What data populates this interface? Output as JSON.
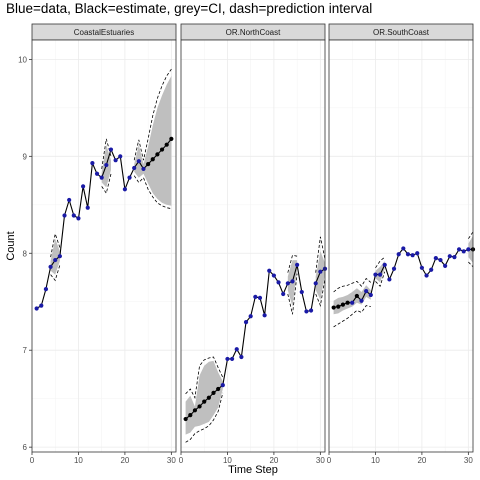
{
  "title": "Blue=data, Black=estimate, grey=CI, dash=prediction interval",
  "colors": {
    "data": "#1a1aa6",
    "estimate": "#000000",
    "ci": "#bfbfbf",
    "strip_bg": "#d9d9d9",
    "grid": "#ebebeb"
  },
  "chart_data": {
    "type": "line",
    "xlabel": "Time Step",
    "ylabel": "Count",
    "xlim": [
      0,
      31
    ],
    "ylim": [
      5.95,
      10.2
    ],
    "x_ticks": [
      0,
      10,
      20,
      30
    ],
    "y_ticks": [
      6,
      7,
      8,
      9,
      10
    ],
    "grid": true,
    "panels": [
      {
        "name": "CoastalEstuaries",
        "data": [
          [
            1,
            7.43
          ],
          [
            2,
            7.46
          ],
          [
            3,
            7.63
          ],
          [
            4,
            7.86
          ],
          [
            5,
            7.93
          ],
          [
            6,
            7.97
          ],
          [
            7,
            8.39
          ],
          [
            8,
            8.55
          ],
          [
            9,
            8.39
          ],
          [
            10,
            8.36
          ],
          [
            11,
            8.69
          ],
          [
            12,
            8.47
          ],
          [
            13,
            8.93
          ],
          [
            14,
            8.82
          ],
          [
            15,
            8.78
          ],
          [
            16,
            8.91
          ],
          [
            17,
            9.07
          ],
          [
            18,
            8.96
          ],
          [
            19,
            9.0
          ],
          [
            20,
            8.66
          ],
          [
            21,
            8.78
          ],
          [
            22,
            8.88
          ],
          [
            23,
            8.95
          ],
          [
            24,
            8.87
          ]
        ],
        "estimates": [
          [
            25,
            8.92
          ],
          [
            26,
            8.97
          ],
          [
            27,
            9.02
          ],
          [
            28,
            9.07
          ],
          [
            29,
            9.12
          ],
          [
            30,
            9.18
          ]
        ],
        "ci_bands": [
          {
            "x": [
              4,
              5,
              6
            ],
            "lower": [
              7.82,
              7.78,
              7.92
            ],
            "upper": [
              7.92,
              8.15,
              8.02
            ]
          },
          {
            "x": [
              15,
              16,
              17
            ],
            "lower": [
              8.73,
              8.68,
              8.86
            ],
            "upper": [
              8.83,
              9.12,
              8.96
            ]
          },
          {
            "x": [
              22,
              23,
              24,
              25,
              26,
              27,
              28,
              29,
              30
            ],
            "lower": [
              8.84,
              8.78,
              8.82,
              8.72,
              8.62,
              8.56,
              8.52,
              8.5,
              8.49
            ],
            "upper": [
              8.92,
              9.12,
              8.92,
              9.1,
              9.32,
              9.5,
              9.63,
              9.74,
              9.83
            ]
          }
        ],
        "prediction_interval": [
          {
            "x": [
              4,
              5,
              6
            ],
            "lower": [
              7.78,
              7.72,
              7.88
            ],
            "upper": [
              7.96,
              8.2,
              8.06
            ]
          },
          {
            "x": [
              15,
              16,
              17
            ],
            "lower": [
              8.69,
              8.62,
              8.82
            ],
            "upper": [
              8.87,
              9.18,
              9.0
            ]
          },
          {
            "x": [
              22,
              23,
              24,
              25,
              26,
              27,
              28,
              29,
              30
            ],
            "lower": [
              8.8,
              8.73,
              8.78,
              8.66,
              8.58,
              8.52,
              8.49,
              8.47,
              8.46
            ],
            "upper": [
              8.96,
              9.17,
              8.96,
              9.18,
              9.42,
              9.6,
              9.73,
              9.83,
              9.9
            ]
          }
        ]
      },
      {
        "name": "OR.NorthCoast",
        "data": [
          [
            9,
            6.64
          ],
          [
            10,
            6.91
          ],
          [
            11,
            6.91
          ],
          [
            12,
            7.01
          ],
          [
            13,
            6.93
          ],
          [
            14,
            7.29
          ],
          [
            15,
            7.35
          ],
          [
            16,
            7.55
          ],
          [
            17,
            7.54
          ],
          [
            18,
            7.36
          ],
          [
            19,
            7.82
          ],
          [
            20,
            7.77
          ],
          [
            21,
            7.7
          ],
          [
            22,
            7.58
          ],
          [
            23,
            7.69
          ],
          [
            24,
            7.71
          ],
          [
            25,
            7.88
          ],
          [
            26,
            7.6
          ],
          [
            27,
            7.4
          ],
          [
            28,
            7.41
          ],
          [
            29,
            7.69
          ],
          [
            30,
            7.81
          ],
          [
            31,
            7.84
          ]
        ],
        "estimates": [
          [
            1,
            6.29
          ],
          [
            2,
            6.33
          ],
          [
            3,
            6.38
          ],
          [
            4,
            6.42
          ],
          [
            5,
            6.47
          ],
          [
            6,
            6.51
          ],
          [
            7,
            6.56
          ],
          [
            8,
            6.6
          ]
        ],
        "ci_bands": [
          {
            "x": [
              1,
              2,
              3,
              4,
              5,
              6,
              7,
              8,
              9
            ],
            "lower": [
              6.13,
              6.15,
              6.21,
              6.22,
              6.24,
              6.26,
              6.33,
              6.41,
              6.6
            ],
            "upper": [
              6.47,
              6.53,
              6.42,
              6.74,
              6.84,
              6.88,
              6.89,
              6.77,
              6.68
            ]
          },
          {
            "x": [
              23,
              24,
              25
            ],
            "lower": [
              7.62,
              7.45,
              7.83
            ],
            "upper": [
              7.76,
              7.93,
              7.93
            ]
          },
          {
            "x": [
              29,
              30,
              31
            ],
            "lower": [
              7.62,
              7.52,
              7.78
            ],
            "upper": [
              7.76,
              8.02,
              7.9
            ]
          }
        ],
        "prediction_interval": [
          {
            "x": [
              1,
              2,
              3,
              4,
              5,
              6,
              7,
              8,
              9
            ],
            "lower": [
              6.05,
              6.08,
              6.14,
              6.17,
              6.19,
              6.22,
              6.28,
              6.37,
              6.56
            ],
            "upper": [
              6.55,
              6.6,
              6.51,
              6.84,
              6.9,
              6.92,
              6.93,
              6.82,
              6.72
            ]
          },
          {
            "x": [
              23,
              24,
              25
            ],
            "lower": [
              7.58,
              7.37,
              7.79
            ],
            "upper": [
              7.8,
              7.98,
              7.97
            ]
          },
          {
            "x": [
              29,
              30,
              31
            ],
            "lower": [
              7.58,
              7.46,
              7.74
            ],
            "upper": [
              7.8,
              8.17,
              7.94
            ]
          }
        ]
      },
      {
        "name": "OR.SouthCoast",
        "data": [
          [
            5,
            7.49
          ],
          [
            7,
            7.51
          ],
          [
            8,
            7.61
          ],
          [
            9,
            7.57
          ],
          [
            10,
            7.78
          ],
          [
            11,
            7.78
          ],
          [
            12,
            7.88
          ],
          [
            13,
            7.73
          ],
          [
            14,
            7.84
          ],
          [
            15,
            7.99
          ],
          [
            16,
            8.05
          ],
          [
            17,
            7.99
          ],
          [
            18,
            7.98
          ],
          [
            19,
            8.0
          ],
          [
            20,
            7.85
          ],
          [
            21,
            7.77
          ],
          [
            22,
            7.83
          ],
          [
            23,
            7.95
          ],
          [
            24,
            7.93
          ],
          [
            25,
            7.87
          ],
          [
            26,
            7.97
          ],
          [
            27,
            7.96
          ],
          [
            28,
            8.04
          ],
          [
            29,
            8.02
          ],
          [
            30,
            8.04
          ]
        ],
        "estimates": [
          [
            1,
            7.44
          ],
          [
            2,
            7.45
          ],
          [
            3,
            7.47
          ],
          [
            4,
            7.49
          ],
          [
            6,
            7.56
          ],
          [
            31,
            8.04
          ]
        ],
        "ci_bands": [
          {
            "x": [
              1,
              2,
              3,
              4,
              5,
              6,
              7,
              8,
              9
            ],
            "lower": [
              7.37,
              7.38,
              7.41,
              7.43,
              7.45,
              7.49,
              7.47,
              7.55,
              7.52
            ],
            "upper": [
              7.51,
              7.54,
              7.55,
              7.57,
              7.6,
              7.64,
              7.6,
              7.67,
              7.62
            ]
          },
          {
            "x": [
              10,
              11,
              12
            ],
            "lower": [
              7.74,
              7.7,
              7.84
            ],
            "upper": [
              7.82,
              7.86,
              7.92
            ]
          },
          {
            "x": [
              30,
              31
            ],
            "lower": [
              7.96,
              7.9
            ],
            "upper": [
              8.1,
              8.18
            ]
          }
        ],
        "prediction_interval": [
          {
            "x": [
              1,
              2,
              3,
              4,
              5,
              6,
              7,
              8,
              9
            ],
            "lower": [
              7.24,
              7.27,
              7.3,
              7.33,
              7.37,
              7.41,
              7.39,
              7.46,
              7.45
            ],
            "upper": [
              7.6,
              7.64,
              7.66,
              7.67,
              7.69,
              7.71,
              7.66,
              7.74,
              7.7
            ]
          },
          {
            "x": [
              10,
              11,
              12
            ],
            "lower": [
              7.71,
              7.66,
              7.81
            ],
            "upper": [
              7.85,
              7.92,
              7.96
            ]
          },
          {
            "x": [
              30,
              31
            ],
            "lower": [
              7.91,
              7.86
            ],
            "upper": [
              8.15,
              8.22
            ]
          }
        ]
      }
    ]
  }
}
